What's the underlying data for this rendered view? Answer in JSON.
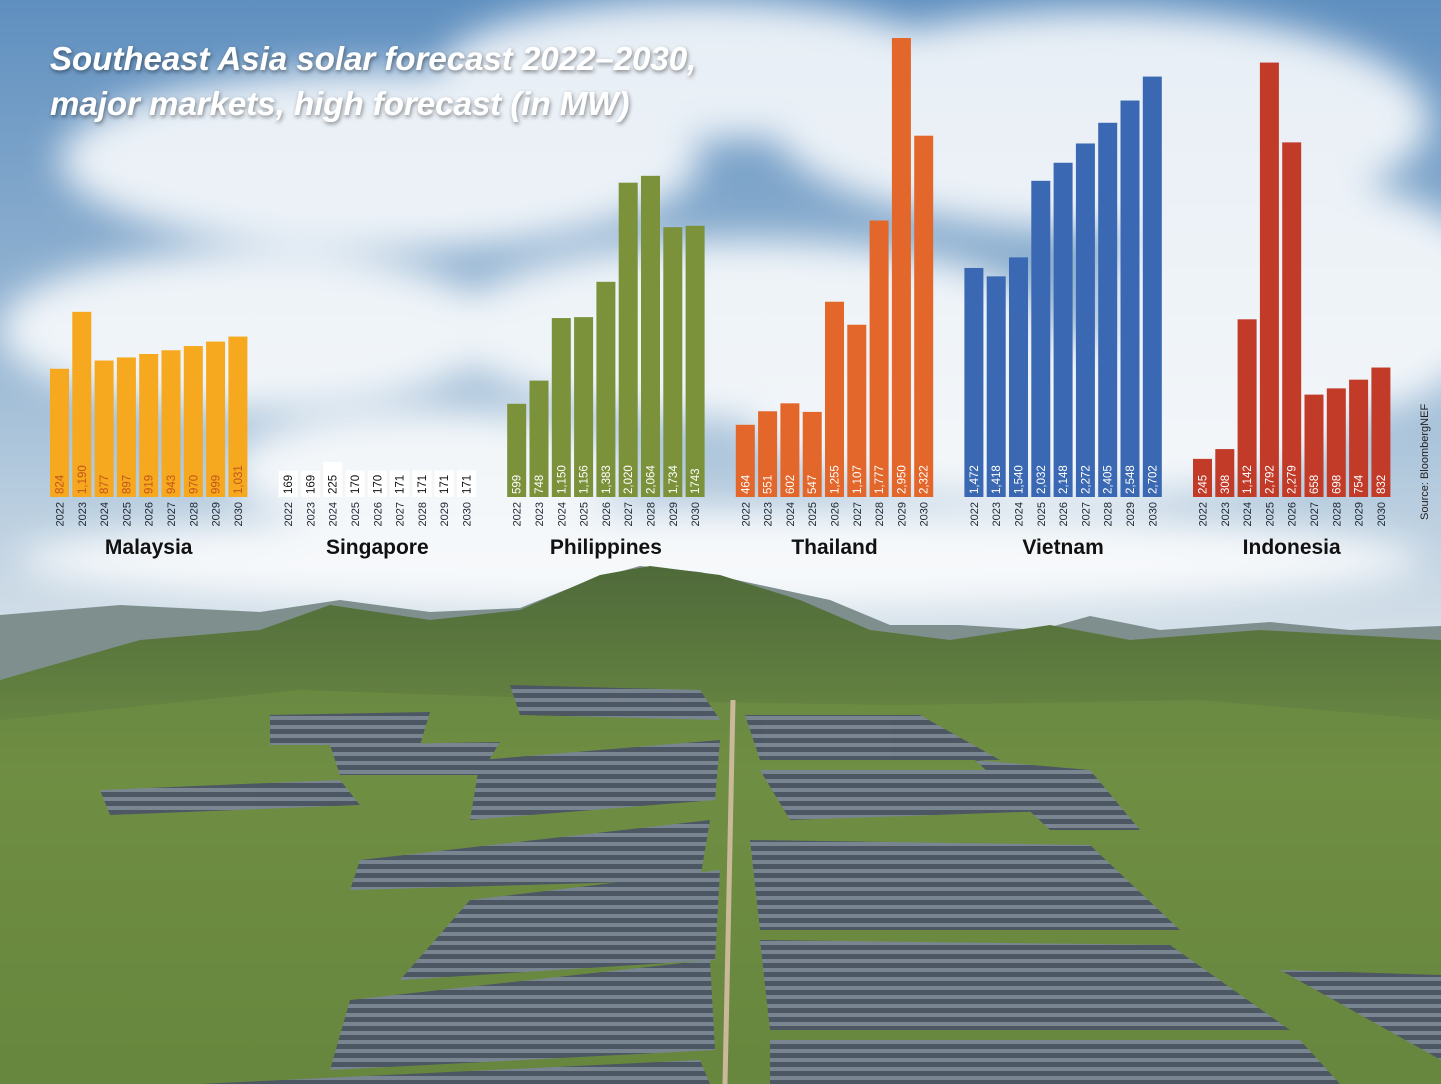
{
  "title": [
    "Southeast Asia solar forecast 2022–2030,",
    "major markets, high forecast (in MW)"
  ],
  "source": "Source: BloombergNEF",
  "chart_data": [
    {
      "type": "bar",
      "title": "Malaysia",
      "color": "#f6a81e",
      "label_color": "#c2561b",
      "categories": [
        "2022",
        "2023",
        "2024",
        "2025",
        "2026",
        "2027",
        "2028",
        "2029",
        "2030"
      ],
      "values": [
        824,
        1190,
        877,
        897,
        919,
        943,
        970,
        999,
        1031
      ],
      "value_labels": [
        "824",
        "1,190",
        "877",
        "897",
        "919",
        "943",
        "970",
        "999",
        "1,031"
      ]
    },
    {
      "type": "bar",
      "title": "Singapore",
      "color": "#ffffff",
      "label_color": "#111111",
      "categories": [
        "2022",
        "2023",
        "2024",
        "2025",
        "2026",
        "2027",
        "2028",
        "2029",
        "2030"
      ],
      "values": [
        169,
        169,
        225,
        170,
        170,
        171,
        171,
        171,
        171
      ],
      "value_labels": [
        "169",
        "169",
        "225",
        "170",
        "170",
        "171",
        "171",
        "171",
        "171"
      ]
    },
    {
      "type": "bar",
      "title": "Philippines",
      "color": "#7b913a",
      "label_color": "#ffffff",
      "categories": [
        "2022",
        "2023",
        "2024",
        "2025",
        "2026",
        "2027",
        "2028",
        "2029",
        "2030"
      ],
      "values": [
        599,
        748,
        1150,
        1156,
        1383,
        2020,
        2064,
        1734,
        1743
      ],
      "value_labels": [
        "599",
        "748",
        "1,150",
        "1,156",
        "1,383",
        "2,020",
        "2,064",
        "1,734",
        "1743"
      ]
    },
    {
      "type": "bar",
      "title": "Thailand",
      "color": "#e3662a",
      "label_color": "#ffffff",
      "categories": [
        "2022",
        "2023",
        "2024",
        "2025",
        "2026",
        "2027",
        "2028",
        "2029",
        "2030"
      ],
      "values": [
        464,
        551,
        602,
        547,
        1255,
        1107,
        1777,
        2950,
        2322
      ],
      "value_labels": [
        "464",
        "551",
        "602",
        "547",
        "1,255",
        "1,107",
        "1,777",
        "2,950",
        "2,322"
      ]
    },
    {
      "type": "bar",
      "title": "Vietnam",
      "color": "#3b68b2",
      "label_color": "#ffffff",
      "categories": [
        "2022",
        "2023",
        "2024",
        "2025",
        "2026",
        "2027",
        "2028",
        "2029",
        "2030"
      ],
      "values": [
        1472,
        1418,
        1540,
        2032,
        2148,
        2272,
        2405,
        2548,
        2702
      ],
      "value_labels": [
        "1,472",
        "1,418",
        "1,540",
        "2,032",
        "2,148",
        "2,272",
        "2,405",
        "2,548",
        "2,702"
      ]
    },
    {
      "type": "bar",
      "title": "Indonesia",
      "color": "#c23a28",
      "label_color": "#ffffff",
      "categories": [
        "2022",
        "2023",
        "2024",
        "2025",
        "2026",
        "2027",
        "2028",
        "2029",
        "2030"
      ],
      "values": [
        245,
        308,
        1142,
        2792,
        2279,
        658,
        698,
        754,
        832
      ],
      "value_labels": [
        "245",
        "308",
        "1,142",
        "2,792",
        "2,279",
        "658",
        "698",
        "754",
        "832"
      ]
    }
  ]
}
